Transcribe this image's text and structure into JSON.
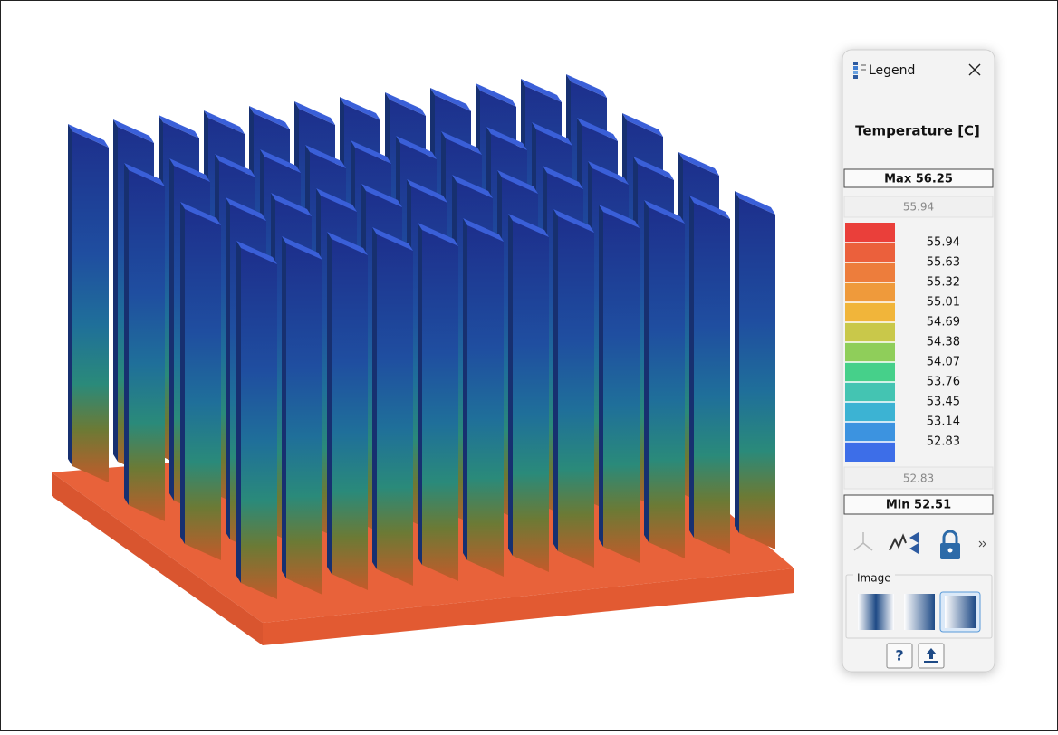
{
  "legend": {
    "title": "Legend",
    "quantity": "Temperature [C]",
    "max": "Max 56.25",
    "upper_bound": "55.94",
    "scale_labels": [
      "55.94",
      "55.63",
      "55.32",
      "55.01",
      "54.69",
      "54.38",
      "54.07",
      "53.76",
      "53.45",
      "53.14",
      "52.83"
    ],
    "swatch_colors": [
      "#ea3f3a",
      "#eb603c",
      "#ed7d3c",
      "#ef9a3b",
      "#f1b53a",
      "#c9c84a",
      "#8fce5a",
      "#46d08a",
      "#44c4b2",
      "#3cb3d3",
      "#3c93e0",
      "#3d6ee8"
    ],
    "lower_bound": "52.83",
    "min": "Min 52.51",
    "image_section": "Image",
    "help_button": "?"
  }
}
